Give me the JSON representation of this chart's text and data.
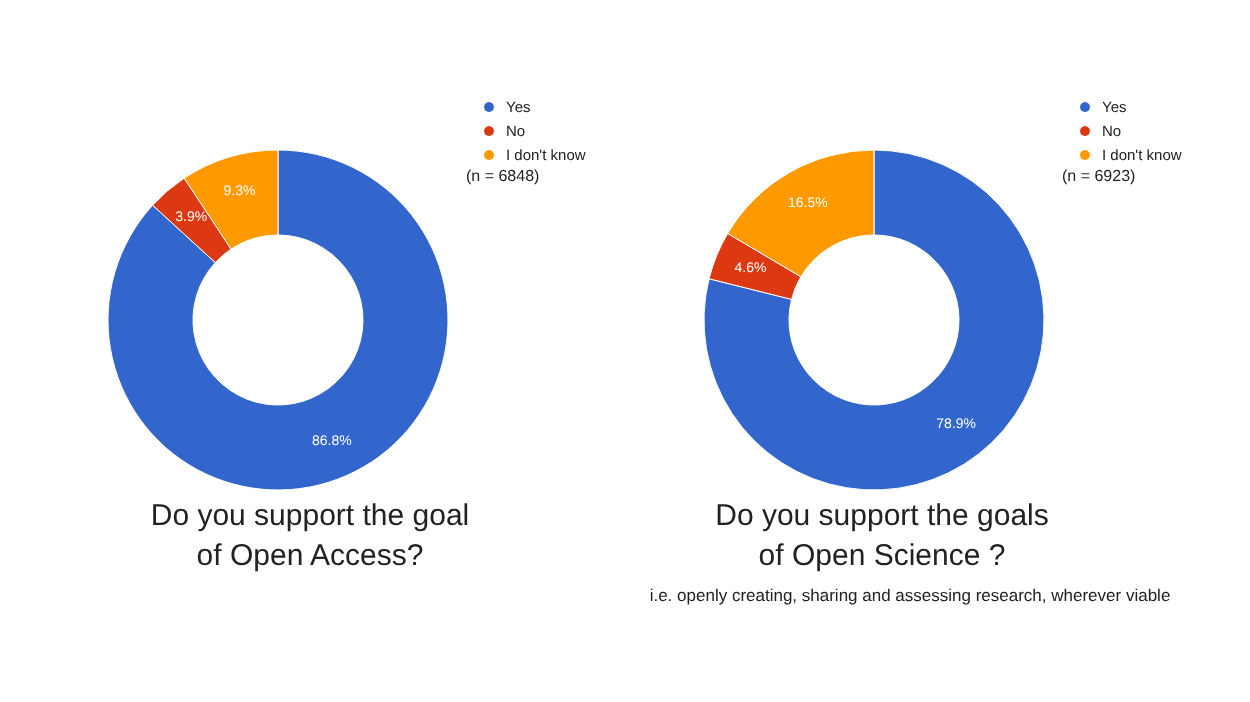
{
  "chart_data": [
    {
      "type": "donut",
      "title": "Do you support the goal\nof Open Access?",
      "categories": [
        "Yes",
        "No",
        "I don't know"
      ],
      "values": [
        86.8,
        3.9,
        9.3
      ],
      "value_labels": [
        "86.8%",
        "3.9%",
        "9.3%"
      ],
      "colors": [
        "#3366cc",
        "#dc3912",
        "#ff9900"
      ],
      "legend": "right",
      "annotations": [
        "(n = 6848)"
      ]
    },
    {
      "type": "donut",
      "title": "Do you support the goals\nof Open Science ?",
      "subtitle": "i.e. openly creating, sharing and assessing research, wherever viable",
      "categories": [
        "Yes",
        "No",
        "I don't know"
      ],
      "values": [
        78.9,
        4.6,
        16.5
      ],
      "value_labels": [
        "78.9%",
        "4.6%",
        "16.5%"
      ],
      "colors": [
        "#3366cc",
        "#dc3912",
        "#ff9900"
      ],
      "legend": "right",
      "annotations": [
        "(n = 6923)"
      ]
    }
  ]
}
